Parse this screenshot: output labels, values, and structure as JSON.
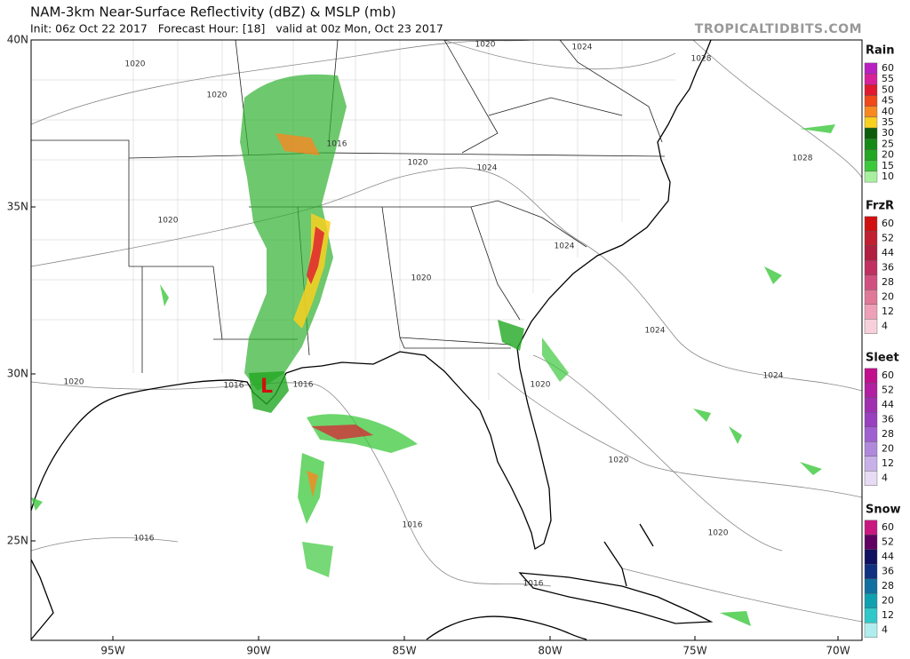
{
  "header": {
    "title": "NAM-3km Near-Surface Reflectivity (dBZ) & MSLP (mb)",
    "subtitle": "Init: 06z Oct 22 2017   Forecast Hour: [18]   valid at 00z Mon, Oct 23 2017",
    "site": "TROPICALTIDBITS.COM"
  },
  "map": {
    "lat_labels": [
      "40N",
      "35N",
      "30N",
      "25N"
    ],
    "lon_labels": [
      "95W",
      "90W",
      "85W",
      "80W",
      "75W",
      "70W"
    ],
    "low_label": "L",
    "isobar_labels": [
      "1020",
      "1024",
      "1028",
      "1020",
      "1020",
      "1016",
      "1020",
      "1024",
      "1028",
      "1020",
      "1024",
      "1020",
      "1024",
      "1020",
      "1016",
      "1016",
      "1020",
      "1024",
      "1020",
      "1016",
      "1016",
      "1020",
      "1016"
    ]
  },
  "legend": {
    "sections": [
      {
        "title": "Rain",
        "labels": [
          "60",
          "55",
          "50",
          "45",
          "40",
          "35",
          "30",
          "25",
          "20",
          "15",
          "10"
        ],
        "colors": [
          "#b820c0",
          "#d8209a",
          "#e01830",
          "#f04818",
          "#f88820",
          "#f8d020",
          "#0c5c0c",
          "#168a16",
          "#22a822",
          "#3cc83c",
          "#a8f0a0"
        ]
      },
      {
        "title": "FrzR",
        "labels": [
          "60",
          "52",
          "44",
          "36",
          "28",
          "20",
          "12",
          "4"
        ],
        "colors": [
          "#d01010",
          "#c02030",
          "#b02040",
          "#c03060",
          "#d05080",
          "#e07898",
          "#eea0b8",
          "#f8d0dc"
        ]
      },
      {
        "title": "Sleet",
        "labels": [
          "60",
          "52",
          "44",
          "36",
          "28",
          "20",
          "12",
          "4"
        ],
        "colors": [
          "#c0108c",
          "#b020a0",
          "#a030b0",
          "#9840c0",
          "#a060d0",
          "#b088dc",
          "#c8b0e8",
          "#e8dcf4"
        ]
      },
      {
        "title": "Snow",
        "labels": [
          "60",
          "52",
          "44",
          "36",
          "28",
          "20",
          "12",
          "4"
        ],
        "colors": [
          "#c81880",
          "#600060",
          "#101060",
          "#103080",
          "#1070a0",
          "#10a0b0",
          "#30c8c8",
          "#b0eeee"
        ]
      }
    ]
  }
}
